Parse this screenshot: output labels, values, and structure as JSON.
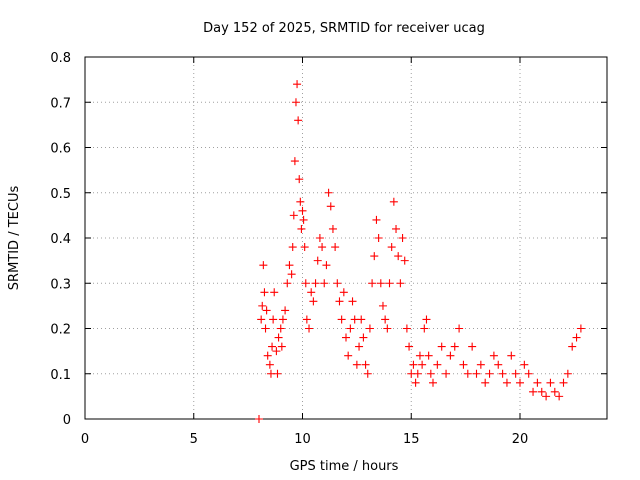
{
  "chart_data": {
    "type": "scatter",
    "title": "Day 152 of 2025, SRMTID for receiver ucag",
    "xlabel": "GPS time / hours",
    "ylabel": "SRMTID / TECUs",
    "xlim": [
      0,
      24
    ],
    "ylim": [
      0,
      0.8
    ],
    "x_ticks": [
      0,
      5,
      10,
      15,
      20
    ],
    "x_tick_labels": [
      "0",
      "5",
      "10",
      "15",
      "20"
    ],
    "y_ticks": [
      0,
      0.1,
      0.2,
      0.3,
      0.4,
      0.5,
      0.6,
      0.7,
      0.8
    ],
    "y_tick_labels": [
      "0",
      "0.1",
      "0.2",
      "0.3",
      "0.4",
      "0.5",
      "0.6",
      "0.7",
      "0.8"
    ],
    "grid": true,
    "marker": "+",
    "color": "#ff0000",
    "series": [
      {
        "name": "SRMTID",
        "x": [
          8.0,
          8.1,
          8.15,
          8.2,
          8.25,
          8.3,
          8.35,
          8.4,
          8.5,
          8.55,
          8.6,
          8.65,
          8.7,
          8.8,
          8.85,
          8.9,
          9.0,
          9.05,
          9.1,
          9.2,
          9.3,
          9.4,
          9.5,
          9.55,
          9.6,
          9.65,
          9.7,
          9.75,
          9.8,
          9.85,
          9.9,
          9.95,
          10.0,
          10.05,
          10.1,
          10.15,
          10.2,
          10.3,
          10.4,
          10.5,
          10.6,
          10.7,
          10.8,
          10.9,
          11.0,
          11.1,
          11.2,
          11.3,
          11.4,
          11.5,
          11.6,
          11.7,
          11.8,
          11.9,
          12.0,
          12.1,
          12.2,
          12.3,
          12.4,
          12.5,
          12.6,
          12.7,
          12.8,
          12.9,
          13.0,
          13.1,
          13.2,
          13.3,
          13.4,
          13.5,
          13.6,
          13.7,
          13.8,
          13.9,
          14.0,
          14.1,
          14.2,
          14.3,
          14.4,
          14.5,
          14.6,
          14.7,
          14.8,
          14.9,
          15.0,
          15.1,
          15.2,
          15.3,
          15.4,
          15.5,
          15.6,
          15.7,
          15.8,
          15.9,
          16.0,
          16.2,
          16.4,
          16.6,
          16.8,
          17.0,
          17.2,
          17.4,
          17.6,
          17.8,
          18.0,
          18.2,
          18.4,
          18.6,
          18.8,
          19.0,
          19.2,
          19.4,
          19.6,
          19.8,
          20.0,
          20.2,
          20.4,
          20.6,
          20.8,
          21.0,
          21.2,
          21.4,
          21.6,
          21.8,
          22.0,
          22.2,
          22.4,
          22.6,
          22.8
        ],
        "y": [
          0.0,
          0.22,
          0.25,
          0.34,
          0.28,
          0.2,
          0.24,
          0.14,
          0.12,
          0.1,
          0.16,
          0.22,
          0.28,
          0.15,
          0.1,
          0.18,
          0.2,
          0.16,
          0.22,
          0.24,
          0.3,
          0.34,
          0.32,
          0.38,
          0.45,
          0.57,
          0.7,
          0.74,
          0.66,
          0.53,
          0.48,
          0.42,
          0.46,
          0.44,
          0.38,
          0.3,
          0.22,
          0.2,
          0.28,
          0.26,
          0.3,
          0.35,
          0.4,
          0.38,
          0.3,
          0.34,
          0.5,
          0.47,
          0.42,
          0.38,
          0.3,
          0.26,
          0.22,
          0.28,
          0.18,
          0.14,
          0.2,
          0.26,
          0.22,
          0.12,
          0.16,
          0.22,
          0.18,
          0.12,
          0.1,
          0.2,
          0.3,
          0.36,
          0.44,
          0.4,
          0.3,
          0.25,
          0.22,
          0.2,
          0.3,
          0.38,
          0.48,
          0.42,
          0.36,
          0.3,
          0.4,
          0.35,
          0.2,
          0.16,
          0.1,
          0.12,
          0.08,
          0.1,
          0.14,
          0.12,
          0.2,
          0.22,
          0.14,
          0.1,
          0.08,
          0.12,
          0.16,
          0.1,
          0.14,
          0.16,
          0.2,
          0.12,
          0.1,
          0.16,
          0.1,
          0.12,
          0.08,
          0.1,
          0.14,
          0.12,
          0.1,
          0.08,
          0.14,
          0.1,
          0.08,
          0.12,
          0.1,
          0.06,
          0.08,
          0.06,
          0.05,
          0.08,
          0.06,
          0.05,
          0.08,
          0.1,
          0.16,
          0.18,
          0.2
        ]
      }
    ]
  }
}
